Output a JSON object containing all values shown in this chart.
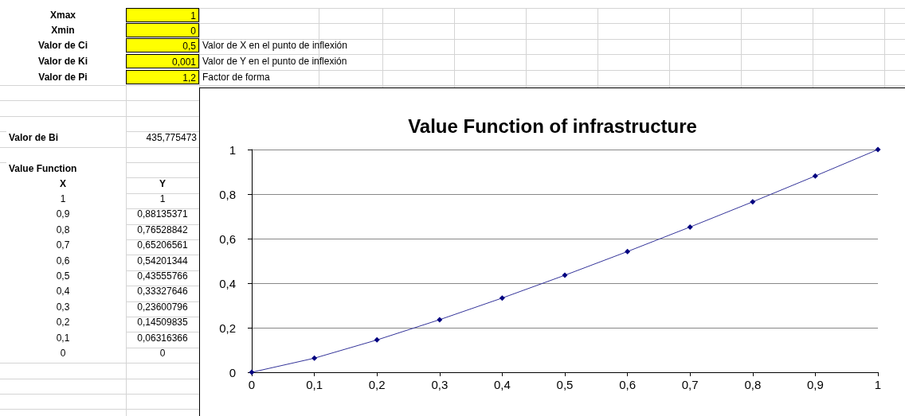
{
  "chart_data": {
    "type": "line",
    "title": "Value Function of infrastructure",
    "x": [
      0,
      0.1,
      0.2,
      0.3,
      0.4,
      0.5,
      0.6,
      0.7,
      0.8,
      0.9,
      1
    ],
    "series": [
      {
        "color": "#000080",
        "values": [
          0,
          0.06316366,
          0.14509835,
          0.23600796,
          0.33327646,
          0.43555766,
          0.54201344,
          0.65206561,
          0.76528842,
          0.88135371,
          1
        ]
      }
    ],
    "xlim": [
      0,
      1
    ],
    "xticks": [
      {
        "value": 0,
        "label": "0"
      },
      {
        "value": 0.1,
        "label": "0,1"
      },
      {
        "value": 0.2,
        "label": "0,2"
      },
      {
        "value": 0.3,
        "label": "0,3"
      },
      {
        "value": 0.4,
        "label": "0,4"
      },
      {
        "value": 0.5,
        "label": "0,5"
      },
      {
        "value": 0.6,
        "label": "0,6"
      },
      {
        "value": 0.7,
        "label": "0,7"
      },
      {
        "value": 0.8,
        "label": "0,8"
      },
      {
        "value": 0.9,
        "label": "0,9"
      },
      {
        "value": 1,
        "label": "1"
      }
    ],
    "ylim": [
      0,
      1
    ],
    "yticks": [
      {
        "value": 0,
        "label": "0"
      },
      {
        "value": 0.2,
        "label": "0,2"
      },
      {
        "value": 0.4,
        "label": "0,4"
      },
      {
        "value": 0.6,
        "label": "0,6"
      },
      {
        "value": 0.8,
        "label": "0,8"
      },
      {
        "value": 1,
        "label": "1"
      }
    ],
    "grid": "y",
    "marker": "diamond",
    "line_style": "solid",
    "annotations": [
      "Xmax",
      "1",
      "Xmin",
      "0",
      "Valor de Ci",
      "0,5",
      "Valor de X en el punto de inflexión",
      "Valor de Ki",
      "0,001",
      "Valor de Y en el punto de inflexión",
      "Valor de Pi",
      "1,2",
      "Factor de forma",
      "Valor de Bi",
      "435,775473",
      "Value Function",
      "X",
      "Y",
      "1",
      "1",
      "0,9",
      "0,88135371",
      "0,8",
      "0,76528842",
      "0,7",
      "0,65206561",
      "0,6",
      "0,54201344",
      "0,5",
      "0,43555766",
      "0,4",
      "0,33327646",
      "0,3",
      "0,23600796",
      "0,2",
      "0,14509835",
      "0,1",
      "0,06316366",
      "0",
      "0"
    ]
  }
}
